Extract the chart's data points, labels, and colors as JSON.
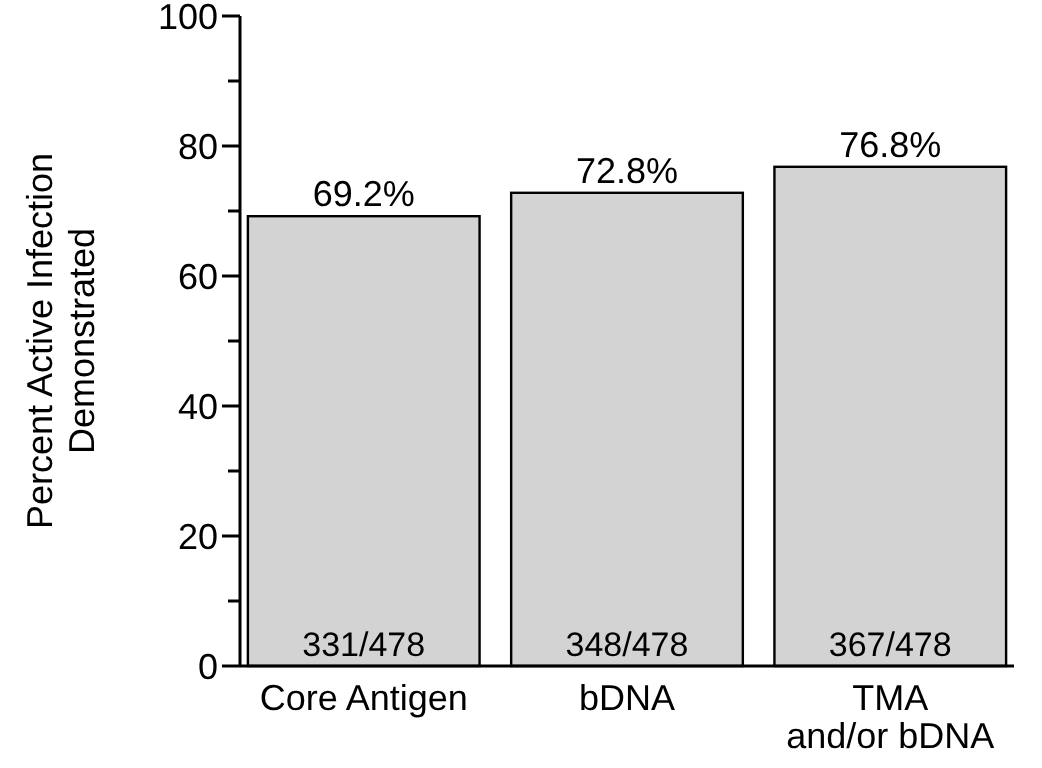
{
  "chart_data": {
    "type": "bar",
    "ylabel": "Percent Active Infection\nDemonstrated",
    "categories": [
      "Core Antigen",
      "bDNA",
      "TMA\nand/or bDNA"
    ],
    "values": [
      69.2,
      72.8,
      76.8
    ],
    "color": "#d3d3d3",
    "value_labels": [
      "69.2%",
      "72.8%",
      "76.8%"
    ],
    "ylim": [
      0,
      100
    ],
    "yticks": [
      0,
      {
        "value": 10,
        "label": null
      },
      20,
      {
        "value": 30,
        "label": null
      },
      40,
      {
        "value": 50,
        "label": null
      },
      60,
      {
        "value": 70,
        "label": null
      },
      80,
      {
        "value": 90,
        "label": null
      },
      100
    ],
    "annotations": [
      {
        "text": "331/478",
        "x": "Core Antigen",
        "y": 0
      },
      {
        "text": "348/478",
        "x": "bDNA",
        "y": 0
      },
      {
        "text": "367/478",
        "x": "TMA\nand/or bDNA",
        "y": 0
      }
    ],
    "grid": false
  }
}
